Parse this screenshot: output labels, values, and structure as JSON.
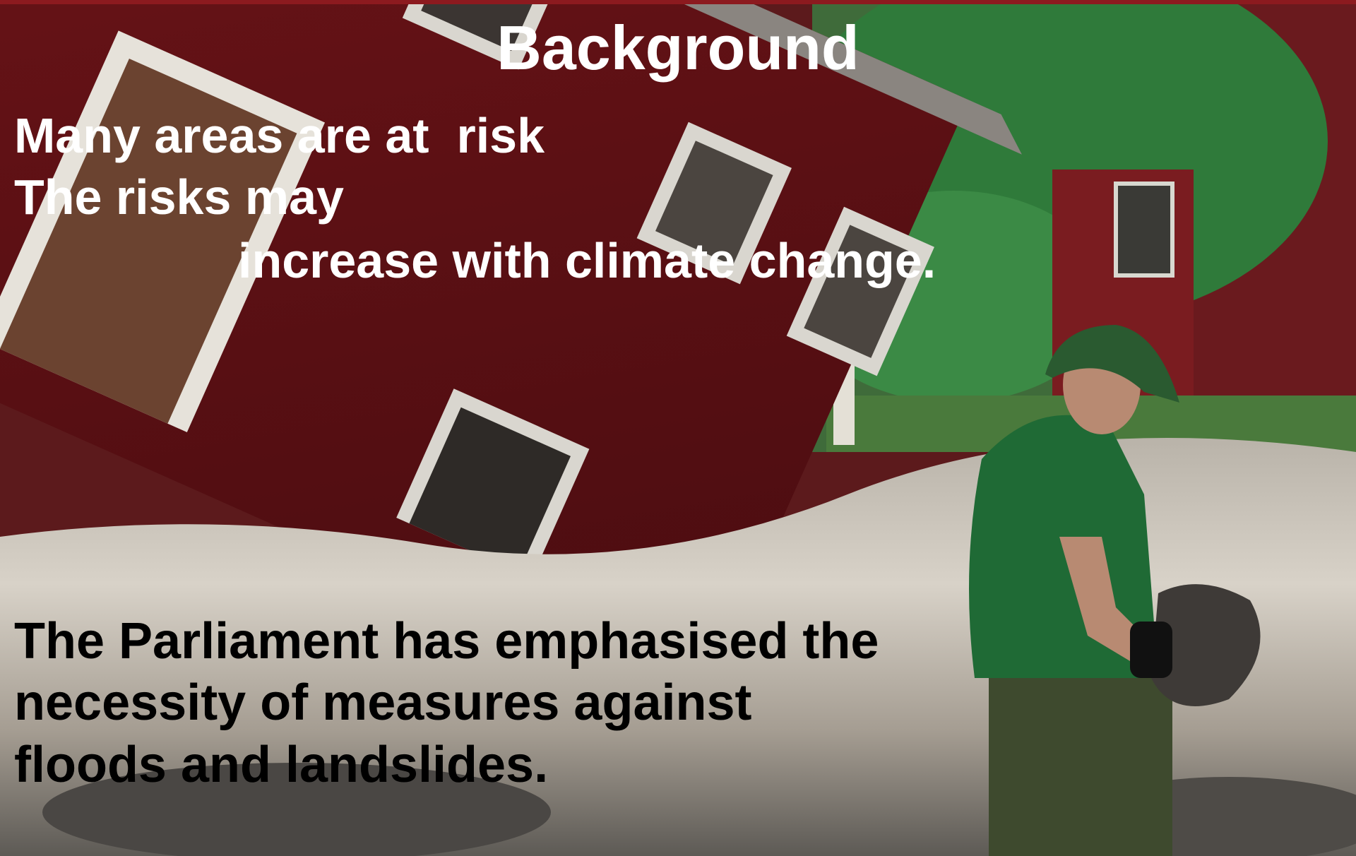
{
  "slide": {
    "title": "Background",
    "top_lines": [
      "Many areas are at  risk",
      "The risks may",
      "increase with climate change."
    ],
    "bottom_lines": [
      "The Parliament has emphasised the",
      "necessity of measures against",
      "floods and landslides."
    ]
  }
}
